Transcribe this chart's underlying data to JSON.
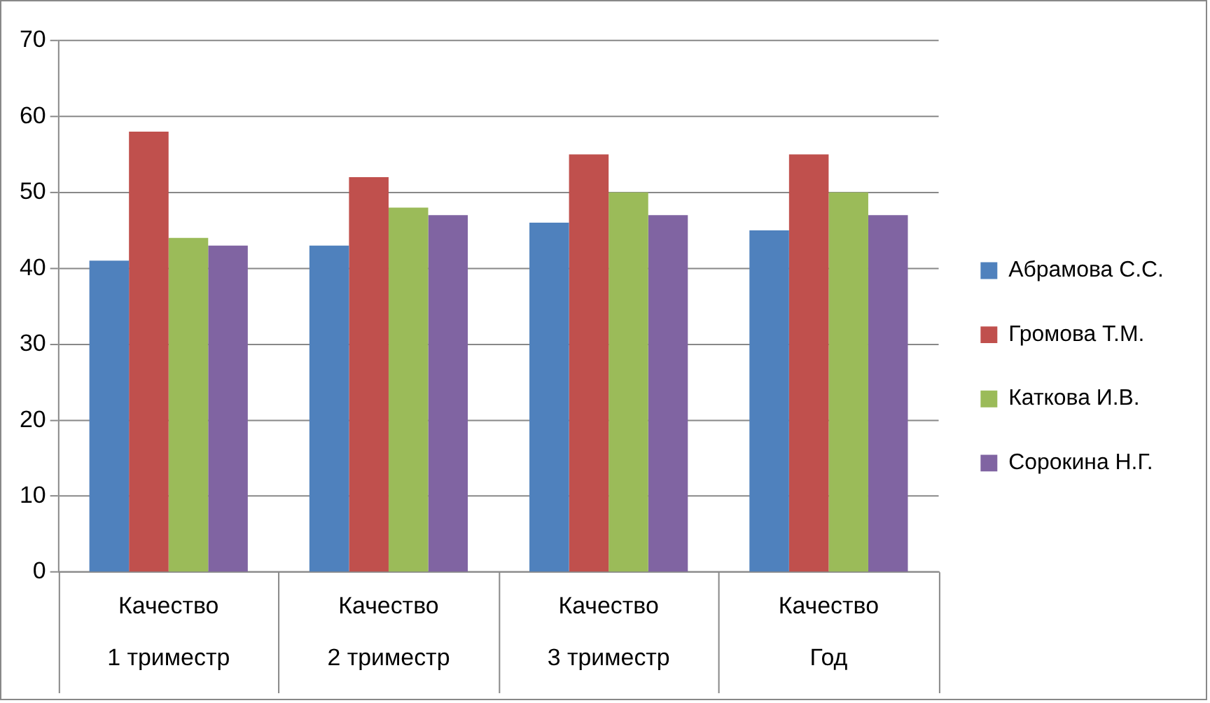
{
  "chart_data": {
    "type": "bar",
    "categories": [
      "Качество\n1 триместр",
      "Качество\n2 триместр",
      "Качество\n3 триместр",
      "Качество\nГод"
    ],
    "series": [
      {
        "name": "Абрамова С.С.",
        "color": "#4f81bd",
        "values": [
          41,
          43,
          46,
          45
        ]
      },
      {
        "name": "Громова Т.М.",
        "color": "#c0504d",
        "values": [
          58,
          52,
          55,
          55
        ]
      },
      {
        "name": "Каткова И.В.",
        "color": "#9bbb59",
        "values": [
          44,
          48,
          50,
          50
        ]
      },
      {
        "name": "Сорокина Н.Г.",
        "color": "#8064a2",
        "values": [
          43,
          47,
          47,
          47
        ]
      }
    ],
    "ylim": [
      0,
      70
    ],
    "yticks": [
      0,
      10,
      20,
      30,
      40,
      50,
      60,
      70
    ],
    "grid": "y",
    "legend": "right"
  }
}
